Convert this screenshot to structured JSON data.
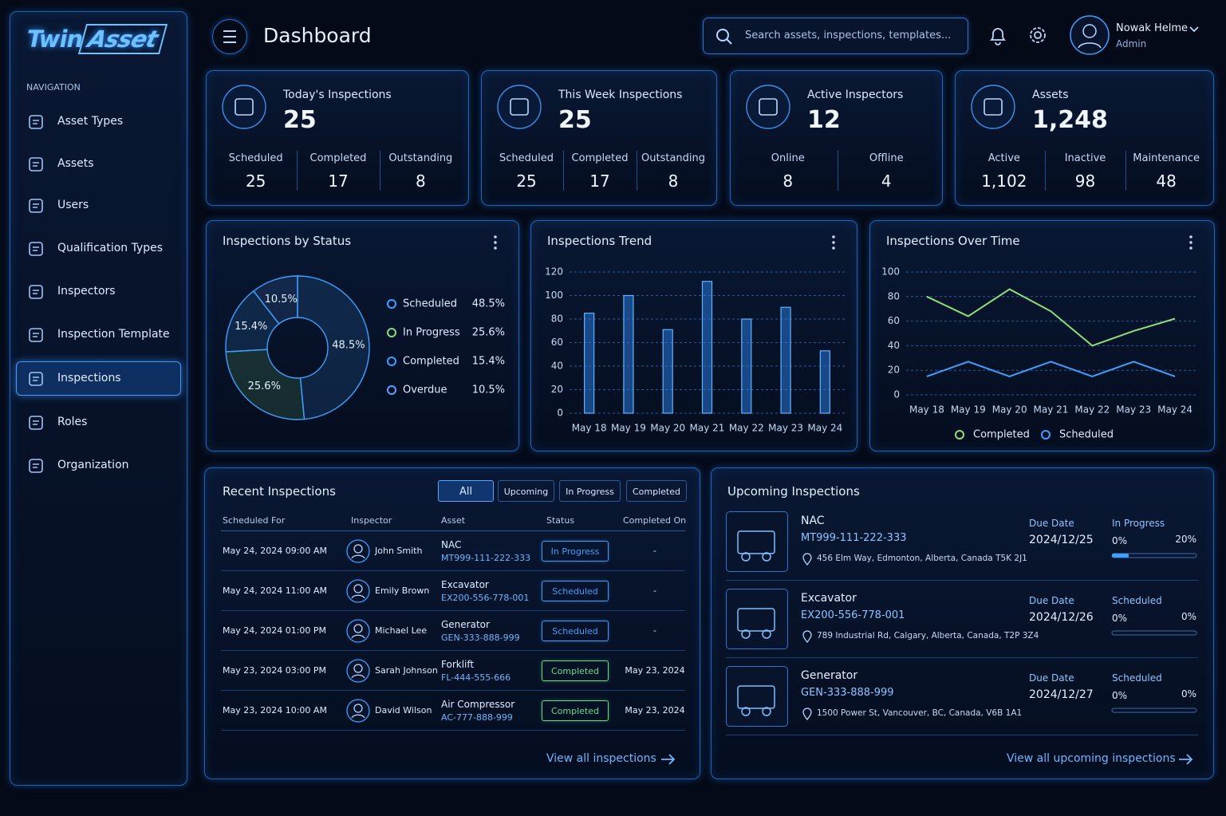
{
  "brand": {
    "part1": "Twin",
    "part2": "Asset"
  },
  "navigation": {
    "heading": "NAVIGATION",
    "items": [
      {
        "label": "Asset Types"
      },
      {
        "label": "Assets"
      },
      {
        "label": "Users"
      },
      {
        "label": "Qualification Types"
      },
      {
        "label": "Inspectors"
      },
      {
        "label": "Inspection Template"
      },
      {
        "label": "Inspections",
        "active": true
      },
      {
        "label": "Roles"
      },
      {
        "label": "Organization"
      }
    ]
  },
  "header": {
    "title": "Dashboard",
    "search_placeholder": "Search assets, inspections, templates...",
    "user_name": "Nowak Helme",
    "user_role": "Admin"
  },
  "stats": [
    {
      "title": "Today's Inspections",
      "value": "25",
      "details": [
        {
          "label": "Scheduled",
          "value": "25"
        },
        {
          "label": "Completed",
          "value": "17"
        },
        {
          "label": "Outstanding",
          "value": "8"
        }
      ]
    },
    {
      "title": "This Week Inspections",
      "value": "25",
      "details": [
        {
          "label": "Scheduled",
          "value": "25"
        },
        {
          "label": "Completed",
          "value": "17"
        },
        {
          "label": "Outstanding",
          "value": "8"
        }
      ]
    },
    {
      "title": "Active Inspectors",
      "value": "12",
      "details": [
        {
          "label": "Online",
          "value": "8"
        },
        {
          "label": "Offline",
          "value": "4"
        }
      ]
    },
    {
      "title": "Assets",
      "value": "1,248",
      "details": [
        {
          "label": "Active",
          "value": "1,102"
        },
        {
          "label": "Inactive",
          "value": "98"
        },
        {
          "label": "Maintenance",
          "value": "48"
        }
      ]
    }
  ],
  "chart_data": [
    {
      "type": "pie",
      "title": "Inspections by Status",
      "categories": [
        "Scheduled",
        "In Progress",
        "Completed",
        "Overdue"
      ],
      "values": [
        48.5,
        25.6,
        15.4,
        10.5
      ],
      "value_labels": [
        "48.5%",
        "25.6%",
        "15.4%",
        "10.5%"
      ],
      "colors": [
        "#3fa0ff",
        "#7fe07f",
        "#3fa0ff",
        "#5f9dff"
      ],
      "legend": "right"
    },
    {
      "type": "bar",
      "title": "Inspections Trend",
      "categories": [
        "May 18",
        "May 19",
        "May 20",
        "May 21",
        "May 22",
        "May 23",
        "May 24"
      ],
      "values": [
        85,
        100,
        71,
        112,
        80,
        90,
        53
      ],
      "color": "#2f8cff",
      "ylim": [
        0,
        120
      ],
      "yticks": [
        0,
        20,
        40,
        60,
        80,
        100,
        120
      ],
      "grid": true
    },
    {
      "type": "line",
      "title": "Inspections Over Time",
      "categories": [
        "May 18",
        "May 19",
        "May 20",
        "May 21",
        "May 22",
        "May 23",
        "May 24"
      ],
      "series": [
        {
          "name": "Completed",
          "color": "#8ee07a",
          "values": [
            80,
            64,
            86,
            68,
            40,
            52,
            62
          ]
        },
        {
          "name": "Scheduled",
          "color": "#3fa0ff",
          "values": [
            15,
            27,
            15,
            27,
            15,
            27,
            15
          ]
        }
      ],
      "ylim": [
        0,
        100
      ],
      "yticks": [
        0,
        20,
        40,
        60,
        80,
        100
      ],
      "grid": true,
      "legend": "bottom"
    }
  ],
  "recent_inspections": {
    "title": "Recent Inspections",
    "filters": [
      {
        "label": "All",
        "active": true
      },
      {
        "label": "Upcoming"
      },
      {
        "label": "In Progress"
      },
      {
        "label": "Completed"
      }
    ],
    "columns": [
      "Scheduled For",
      "Inspector",
      "Asset",
      "Status",
      "Completed On"
    ],
    "rows": [
      {
        "scheduled_for": "May 24, 2024 09:00 AM",
        "inspector": "John Smith",
        "asset": "NAC",
        "asset_code": "MT999-111-222-333",
        "status": {
          "label": "In Progress",
          "color": "#3fa0ff"
        },
        "completed_on": "-"
      },
      {
        "scheduled_for": "May 24, 2024 11:00 AM",
        "inspector": "Emily Brown",
        "asset": "Excavator",
        "asset_code": "EX200-556-778-001",
        "status": {
          "label": "Scheduled",
          "color": "#3fa0ff"
        },
        "completed_on": "-"
      },
      {
        "scheduled_for": "May 24, 2024 01:00 PM",
        "inspector": "Michael Lee",
        "asset": "Generator",
        "asset_code": "GEN-333-888-999",
        "status": {
          "label": "Scheduled",
          "color": "#3fa0ff"
        },
        "completed_on": "-"
      },
      {
        "scheduled_for": "May 23, 2024 03:00 PM",
        "inspector": "Sarah Johnson",
        "asset": "Forklift",
        "asset_code": "FL-444-555-666",
        "status": {
          "label": "Completed",
          "color": "#5fe08a"
        },
        "completed_on": "May 23, 2024"
      },
      {
        "scheduled_for": "May 23, 2024 10:00 AM",
        "inspector": "David Wilson",
        "asset": "Air Compressor",
        "asset_code": "AC-777-888-999",
        "status": {
          "label": "Completed",
          "color": "#5fe08a"
        },
        "completed_on": "May 23, 2024"
      }
    ],
    "link": "View all inspections"
  },
  "upcoming_inspections": {
    "title": "Upcoming Inspections",
    "items": [
      {
        "name": "NAC",
        "code": "MT999-111-222-333",
        "address": "456 Elm Way, Edmonton, Alberta, Canada T5K 2J1",
        "due_label": "Due Date",
        "due_date": "2024/12/25",
        "status": "In Progress",
        "progress_start": "0%",
        "progress": 20,
        "progress_label": "20%"
      },
      {
        "name": "Excavator",
        "code": "EX200-556-778-001",
        "address": "789 Industrial Rd, Calgary, Alberta, Canada, T2P 3Z4",
        "due_label": "Due Date",
        "due_date": "2024/12/26",
        "status": "Scheduled",
        "progress_start": "0%",
        "progress": 0,
        "progress_label": "0%"
      },
      {
        "name": "Generator",
        "code": "GEN-333-888-999",
        "address": "1500 Power St, Vancouver, BC, Canada, V6B 1A1",
        "due_label": "Due Date",
        "due_date": "2024/12/27",
        "status": "Scheduled",
        "progress_start": "0%",
        "progress": 0,
        "progress_label": "0%"
      }
    ],
    "link": "View all upcoming inspections"
  }
}
